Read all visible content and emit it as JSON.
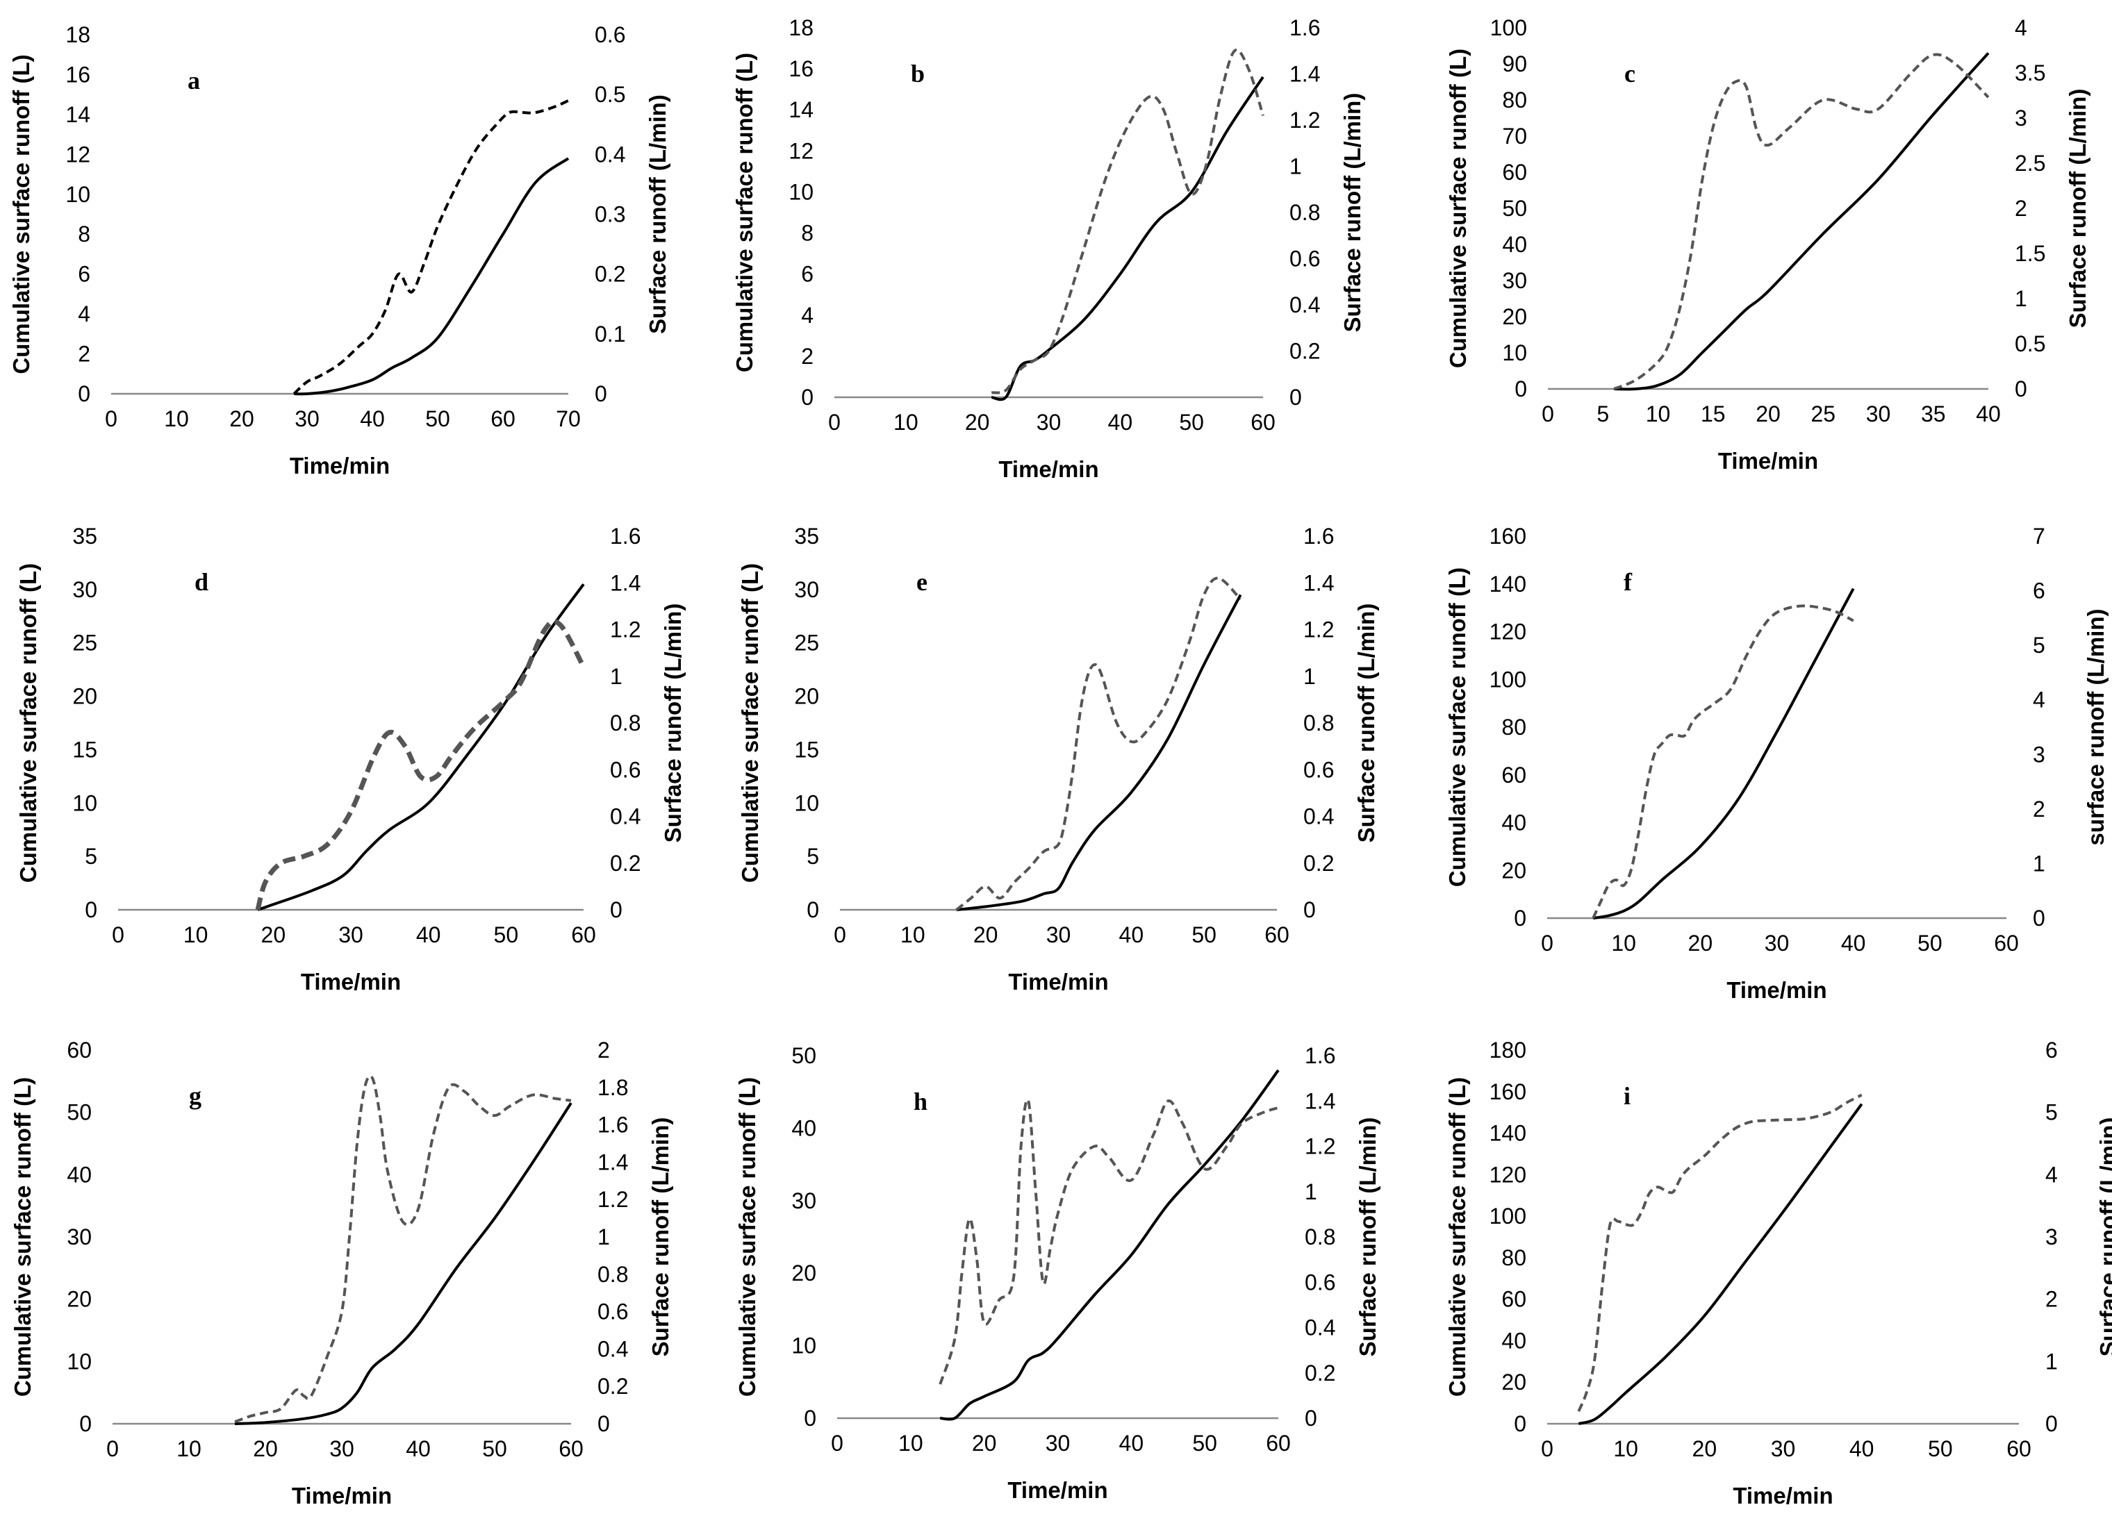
{
  "figure": {
    "xlabel": "Time/min",
    "left_ylabel": "Cumulative surface runoff (L)",
    "right_ylabel": "Surface runoff (L/min)",
    "right_ylabel_f": "surface runoff (L/min)",
    "series_names": [
      "Cumulative surface runoff (L)",
      "Surface runoff (L/min)"
    ],
    "colors": {
      "cumulative": "#000000",
      "rate": "#555555"
    }
  },
  "chart_data": [
    {
      "panel": "a",
      "type": "line",
      "xlim": [
        0,
        70
      ],
      "xticks": [
        0,
        10,
        20,
        30,
        40,
        50,
        60,
        70
      ],
      "ylim_left": [
        0,
        18
      ],
      "yticks_left": [
        0,
        2,
        4,
        6,
        8,
        10,
        12,
        14,
        16,
        18
      ],
      "ylim_right": [
        0,
        0.6
      ],
      "yticks_right": [
        0,
        0.1,
        0.2,
        0.3,
        0.4,
        0.5,
        0.6
      ],
      "series": [
        {
          "name": "Cumulative surface runoff (L)",
          "axis": "left",
          "x": [
            28,
            30,
            33,
            36,
            40,
            43,
            46,
            50,
            55,
            60,
            65,
            70
          ],
          "y": [
            0,
            0,
            0.1,
            0.3,
            0.7,
            1.3,
            1.8,
            2.8,
            5.3,
            8.0,
            10.6,
            11.8
          ]
        },
        {
          "name": "Surface runoff (L/min)",
          "axis": "right",
          "x": [
            28,
            30,
            32,
            35,
            38,
            40,
            42,
            44,
            46,
            48,
            50,
            53,
            56,
            59,
            61,
            63,
            65,
            68,
            70
          ],
          "y": [
            0,
            0.02,
            0.03,
            0.05,
            0.08,
            0.1,
            0.14,
            0.2,
            0.17,
            0.22,
            0.28,
            0.35,
            0.41,
            0.45,
            0.47,
            0.47,
            0.47,
            0.48,
            0.49
          ]
        }
      ]
    },
    {
      "panel": "b",
      "type": "line",
      "xlim": [
        0,
        60
      ],
      "xticks": [
        0,
        10,
        20,
        30,
        40,
        50,
        60
      ],
      "ylim_left": [
        0,
        18
      ],
      "yticks_left": [
        0,
        2,
        4,
        6,
        8,
        10,
        12,
        14,
        16,
        18
      ],
      "ylim_right": [
        0,
        1.6
      ],
      "yticks_right": [
        0,
        0.2,
        0.4,
        0.6,
        0.8,
        1,
        1.2,
        1.4,
        1.6
      ],
      "series": [
        {
          "name": "Cumulative surface runoff (L)",
          "axis": "left",
          "x": [
            22,
            24,
            26,
            28,
            30,
            35,
            40,
            45,
            50,
            55,
            60
          ],
          "y": [
            0,
            0,
            1.5,
            1.8,
            2.3,
            3.8,
            6.0,
            8.5,
            10.0,
            13.0,
            15.6
          ]
        },
        {
          "name": "Surface runoff (L/min)",
          "axis": "right",
          "x": [
            22,
            24,
            26,
            28,
            30,
            32,
            35,
            38,
            41,
            44,
            46,
            48,
            50,
            52,
            54,
            56,
            58,
            60
          ],
          "y": [
            0.02,
            0.03,
            0.12,
            0.16,
            0.2,
            0.35,
            0.65,
            0.95,
            1.17,
            1.3,
            1.25,
            1.05,
            0.88,
            1.0,
            1.3,
            1.5,
            1.42,
            1.22
          ]
        }
      ]
    },
    {
      "panel": "c",
      "type": "line",
      "xlim": [
        0,
        40
      ],
      "xticks": [
        0,
        5,
        10,
        15,
        20,
        25,
        30,
        35,
        40
      ],
      "ylim_left": [
        0,
        100
      ],
      "yticks_left": [
        0,
        10,
        20,
        30,
        40,
        50,
        60,
        70,
        80,
        90,
        100
      ],
      "ylim_right": [
        0,
        4
      ],
      "yticks_right": [
        0,
        0.5,
        1,
        1.5,
        2,
        2.5,
        3,
        3.5,
        4
      ],
      "series": [
        {
          "name": "Cumulative surface runoff (L)",
          "axis": "left",
          "x": [
            6,
            8,
            10,
            12,
            14,
            16,
            18,
            20,
            25,
            30,
            35,
            40
          ],
          "y": [
            0,
            0,
            1,
            4,
            10,
            16,
            22,
            27,
            43,
            58,
            76,
            93
          ]
        },
        {
          "name": "Surface runoff (L/min)",
          "axis": "right",
          "x": [
            6,
            8,
            10,
            11,
            12,
            13,
            14,
            15,
            16,
            17,
            18,
            19,
            20,
            22,
            25,
            28,
            30,
            33,
            35,
            37,
            40
          ],
          "y": [
            0,
            0.1,
            0.3,
            0.5,
            0.9,
            1.5,
            2.3,
            2.9,
            3.25,
            3.4,
            3.35,
            2.85,
            2.7,
            2.9,
            3.2,
            3.1,
            3.1,
            3.5,
            3.7,
            3.6,
            3.23
          ]
        }
      ]
    },
    {
      "panel": "d",
      "type": "line",
      "xlim": [
        0,
        60
      ],
      "xticks": [
        0,
        10,
        20,
        30,
        40,
        50,
        60
      ],
      "ylim_left": [
        0,
        35
      ],
      "yticks_left": [
        0,
        5,
        10,
        15,
        20,
        25,
        30,
        35
      ],
      "ylim_right": [
        0,
        1.6
      ],
      "yticks_right": [
        0,
        0.2,
        0.4,
        0.6,
        0.8,
        1,
        1.2,
        1.4,
        1.6
      ],
      "series": [
        {
          "name": "Cumulative surface runoff (L)",
          "axis": "left",
          "x": [
            18,
            20,
            25,
            29,
            32,
            35,
            40,
            45,
            50,
            55,
            60
          ],
          "y": [
            0,
            0.5,
            1.8,
            3.2,
            5.5,
            7.5,
            10.0,
            14.5,
            19.5,
            25.5,
            30.5
          ]
        },
        {
          "name": "Surface runoff (L/min)",
          "axis": "right",
          "x": [
            18,
            19,
            21,
            24,
            27,
            30,
            33,
            35,
            37,
            39,
            41,
            43,
            46,
            50,
            52,
            55,
            57,
            60
          ],
          "y": [
            0,
            0.12,
            0.2,
            0.23,
            0.28,
            0.42,
            0.66,
            0.76,
            0.7,
            0.57,
            0.57,
            0.66,
            0.78,
            0.9,
            0.98,
            1.2,
            1.22,
            1.04
          ]
        }
      ]
    },
    {
      "panel": "e",
      "type": "line",
      "xlim": [
        0,
        60
      ],
      "xticks": [
        0,
        10,
        20,
        30,
        40,
        50,
        60
      ],
      "ylim_left": [
        0,
        35
      ],
      "yticks_left": [
        0,
        5,
        10,
        15,
        20,
        25,
        30,
        35
      ],
      "ylim_right": [
        0,
        1.6
      ],
      "yticks_right": [
        0,
        0.2,
        0.4,
        0.6,
        0.8,
        1,
        1.2,
        1.4,
        1.6
      ],
      "series": [
        {
          "name": "Cumulative surface runoff (L)",
          "axis": "left",
          "x": [
            16,
            20,
            25,
            28,
            30,
            32,
            35,
            40,
            45,
            50,
            55
          ],
          "y": [
            0,
            0.3,
            0.8,
            1.5,
            2.0,
            4.5,
            7.5,
            11.0,
            16.0,
            23.0,
            29.5
          ]
        },
        {
          "name": "Surface runoff (L/min)",
          "axis": "right",
          "x": [
            16,
            18,
            20,
            22,
            24,
            26,
            28,
            30,
            31,
            32,
            33,
            34,
            35,
            36,
            38,
            40,
            42,
            45,
            48,
            50,
            52,
            55
          ],
          "y": [
            0,
            0.05,
            0.1,
            0.05,
            0.12,
            0.18,
            0.25,
            0.28,
            0.4,
            0.6,
            0.85,
            1.0,
            1.05,
            1.0,
            0.8,
            0.72,
            0.76,
            0.9,
            1.15,
            1.35,
            1.42,
            1.33
          ]
        }
      ]
    },
    {
      "panel": "f",
      "type": "line",
      "xlim": [
        0,
        60
      ],
      "xticks": [
        0,
        10,
        20,
        30,
        40,
        50,
        60
      ],
      "ylim_left": [
        0,
        160
      ],
      "yticks_left": [
        0,
        20,
        40,
        60,
        80,
        100,
        120,
        140,
        160
      ],
      "ylim_right": [
        0,
        7
      ],
      "yticks_right": [
        0,
        1,
        2,
        3,
        4,
        5,
        6,
        7
      ],
      "series": [
        {
          "name": "Cumulative surface runoff (L)",
          "axis": "left",
          "x": [
            6,
            8,
            10,
            12,
            15,
            20,
            25,
            30,
            35,
            40
          ],
          "y": [
            0,
            1,
            3,
            7,
            16,
            30,
            50,
            78,
            108,
            138
          ]
        },
        {
          "name": "Surface runoff (L/min)",
          "axis": "right",
          "x": [
            6,
            7,
            8,
            9,
            10,
            11,
            12,
            13,
            14,
            15,
            16,
            17,
            18,
            19,
            20,
            22,
            24,
            26,
            28,
            30,
            33,
            36,
            38,
            40
          ],
          "y": [
            0,
            0.3,
            0.6,
            0.7,
            0.6,
            0.9,
            1.6,
            2.4,
            3.0,
            3.2,
            3.35,
            3.35,
            3.35,
            3.6,
            3.75,
            3.95,
            4.2,
            4.8,
            5.3,
            5.6,
            5.72,
            5.68,
            5.6,
            5.45
          ]
        }
      ]
    },
    {
      "panel": "g",
      "type": "line",
      "xlim": [
        0,
        60
      ],
      "xticks": [
        0,
        10,
        20,
        30,
        40,
        50,
        60
      ],
      "ylim_left": [
        0,
        60
      ],
      "yticks_left": [
        0,
        10,
        20,
        30,
        40,
        50,
        60
      ],
      "ylim_right": [
        0,
        2
      ],
      "yticks_right": [
        0,
        0.2,
        0.4,
        0.6,
        0.8,
        1,
        1.2,
        1.4,
        1.6,
        1.8,
        2
      ],
      "series": [
        {
          "name": "Cumulative surface runoff (L)",
          "axis": "left",
          "x": [
            16,
            20,
            25,
            28,
            30,
            32,
            34,
            37,
            40,
            45,
            50,
            55,
            60
          ],
          "y": [
            0,
            0.2,
            0.8,
            1.5,
            2.5,
            5.0,
            9.0,
            12.0,
            16.0,
            25.0,
            33.0,
            42.0,
            51.5
          ]
        },
        {
          "name": "Surface runoff (L/min)",
          "axis": "right",
          "x": [
            16,
            18,
            20,
            22,
            24,
            25,
            26,
            28,
            30,
            31,
            32,
            33,
            34,
            35,
            36,
            38,
            40,
            42,
            44,
            46,
            48,
            50,
            52,
            55,
            58,
            60
          ],
          "y": [
            0.01,
            0.04,
            0.06,
            0.08,
            0.18,
            0.15,
            0.15,
            0.35,
            0.6,
            1.0,
            1.5,
            1.8,
            1.85,
            1.65,
            1.35,
            1.08,
            1.15,
            1.55,
            1.8,
            1.78,
            1.7,
            1.65,
            1.7,
            1.76,
            1.74,
            1.73
          ]
        }
      ]
    },
    {
      "panel": "h",
      "type": "line",
      "xlim": [
        0,
        60
      ],
      "xticks": [
        0,
        10,
        20,
        30,
        40,
        50,
        60
      ],
      "ylim_left": [
        0,
        50
      ],
      "yticks_left": [
        0,
        10,
        20,
        30,
        40,
        50
      ],
      "ylim_right": [
        0,
        1.6
      ],
      "yticks_right": [
        0,
        0.2,
        0.4,
        0.6,
        0.8,
        1,
        1.2,
        1.4,
        1.6
      ],
      "series": [
        {
          "name": "Cumulative surface runoff (L)",
          "axis": "left",
          "x": [
            14,
            16,
            18,
            20,
            24,
            26,
            28,
            30,
            35,
            40,
            45,
            50,
            55,
            60
          ],
          "y": [
            0,
            0,
            2,
            3,
            5,
            8,
            9,
            11,
            17,
            22.5,
            29.5,
            35,
            41,
            48
          ]
        },
        {
          "name": "Surface runoff (L/min)",
          "axis": "right",
          "x": [
            14,
            16,
            17,
            18,
            19,
            20,
            22,
            24,
            25,
            26,
            27,
            28,
            29,
            30,
            32,
            35,
            37,
            40,
            43,
            45,
            47,
            50,
            53,
            55,
            58,
            60
          ],
          "y": [
            0.15,
            0.35,
            0.65,
            0.88,
            0.7,
            0.42,
            0.52,
            0.62,
            1.2,
            1.4,
            1.0,
            0.6,
            0.75,
            0.9,
            1.1,
            1.2,
            1.15,
            1.05,
            1.25,
            1.4,
            1.3,
            1.1,
            1.2,
            1.3,
            1.35,
            1.37
          ]
        }
      ]
    },
    {
      "panel": "i",
      "type": "line",
      "xlim": [
        0,
        60
      ],
      "xticks": [
        0,
        10,
        20,
        30,
        40,
        50,
        60
      ],
      "ylim_left": [
        0,
        180
      ],
      "yticks_left": [
        0,
        20,
        40,
        60,
        80,
        100,
        120,
        140,
        160,
        180
      ],
      "ylim_right": [
        0,
        6
      ],
      "yticks_right": [
        0,
        1,
        2,
        3,
        4,
        5,
        6
      ],
      "series": [
        {
          "name": "Cumulative surface runoff (L)",
          "axis": "left",
          "x": [
            4,
            6,
            8,
            10,
            15,
            20,
            25,
            30,
            35,
            40
          ],
          "y": [
            0,
            2,
            8,
            15,
            32,
            52,
            77,
            102,
            128,
            154
          ]
        },
        {
          "name": "Surface runoff (L/min)",
          "axis": "right",
          "x": [
            4,
            5,
            6,
            7,
            8,
            9,
            10,
            11,
            12,
            13,
            14,
            15,
            16,
            17,
            18,
            20,
            22,
            24,
            26,
            28,
            30,
            33,
            36,
            38,
            40
          ],
          "y": [
            0.2,
            0.5,
            1.0,
            2.2,
            3.2,
            3.25,
            3.2,
            3.2,
            3.4,
            3.7,
            3.8,
            3.75,
            3.72,
            3.95,
            4.1,
            4.3,
            4.55,
            4.75,
            4.85,
            4.87,
            4.88,
            4.9,
            5.0,
            5.15,
            5.28
          ]
        }
      ]
    }
  ]
}
